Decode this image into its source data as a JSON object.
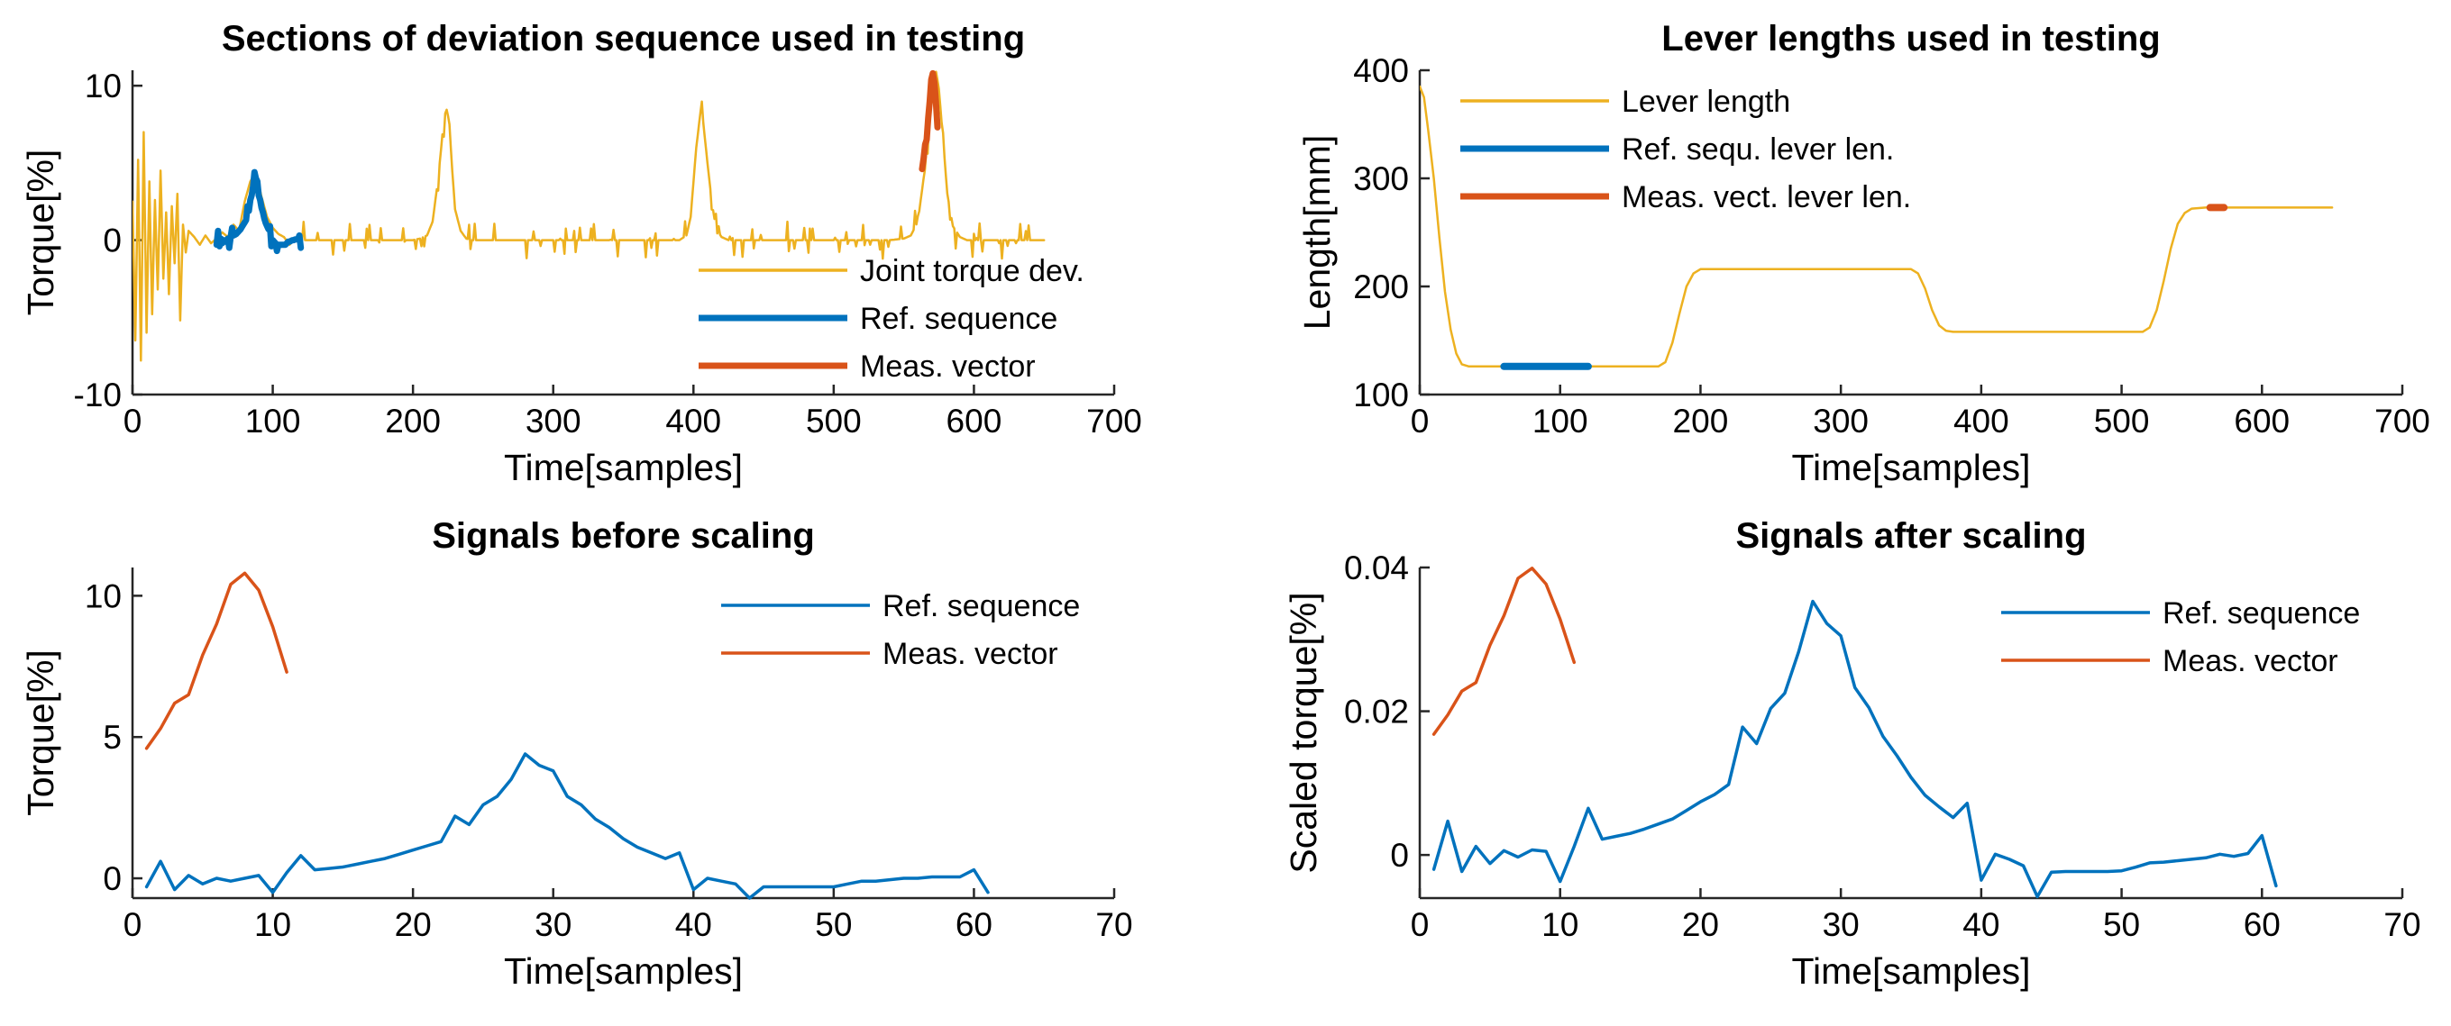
{
  "chart_data": [
    {
      "id": "p1",
      "type": "line",
      "title": "Sections of deviation sequence used in testing",
      "xlabel": "Time[samples]",
      "ylabel": "Torque[%]",
      "xlim": [
        0,
        700
      ],
      "ylim": [
        -10,
        11
      ],
      "xticks": [
        0,
        100,
        200,
        300,
        400,
        500,
        600,
        700
      ],
      "yticks": [
        -10,
        0,
        10
      ],
      "legend": "bottom-right",
      "series": [
        {
          "name": "Joint torque dev.",
          "color": "#EDB120",
          "width": 2.5,
          "kind": "torque_dev",
          "x": [
            0,
            2,
            4,
            6,
            8,
            10,
            12,
            14,
            16,
            18,
            20,
            22,
            24,
            26,
            28,
            30,
            32,
            34,
            36,
            38,
            40,
            44,
            48,
            52,
            56,
            60,
            64,
            68,
            72,
            76,
            80,
            84,
            88,
            92,
            96,
            100,
            104,
            108,
            112,
            116,
            120,
            130,
            140,
            150,
            160,
            170,
            180,
            190,
            200,
            205,
            210,
            214,
            218,
            222,
            224,
            226,
            228,
            230,
            234,
            238,
            242,
            250,
            260,
            270,
            280,
            290,
            300,
            310,
            320,
            330,
            340,
            350,
            360,
            370,
            380,
            390,
            395,
            398,
            402,
            405,
            407,
            410,
            413,
            416,
            420,
            425,
            430,
            440,
            450,
            460,
            470,
            480,
            490,
            500,
            510,
            520,
            530,
            540,
            550,
            555,
            560,
            565,
            568,
            571,
            573,
            575,
            578,
            581,
            585,
            590,
            595,
            600,
            610,
            620,
            630,
            640,
            650
          ],
          "y": [
            2.5,
            -6.5,
            5.2,
            -7.8,
            7.0,
            -6.0,
            3.8,
            -4.8,
            2.6,
            -3.2,
            4.5,
            -2.5,
            1.8,
            -3.5,
            2.2,
            -1.5,
            3.0,
            -5.2,
            1.0,
            -0.8,
            0.6,
            0.2,
            -0.3,
            0.3,
            -0.2,
            0.1,
            0.5,
            0.2,
            1.0,
            0.6,
            2.5,
            3.8,
            4.4,
            2.8,
            1.5,
            0.8,
            0.4,
            0.2,
            -0.3,
            0.1,
            0.0,
            0.0,
            0.0,
            0.0,
            0.0,
            0.0,
            0.0,
            0.0,
            0.0,
            0.1,
            0.3,
            1.2,
            4.0,
            7.8,
            8.6,
            7.5,
            4.5,
            2.0,
            0.6,
            0.1,
            0.0,
            0.0,
            0.0,
            0.0,
            0.0,
            0.0,
            0.0,
            0.0,
            0.0,
            0.0,
            0.0,
            0.0,
            0.0,
            0.0,
            0.0,
            0.0,
            0.3,
            1.5,
            6.0,
            8.3,
            7.6,
            5.0,
            2.5,
            0.8,
            0.2,
            0.0,
            0.0,
            0.0,
            0.0,
            0.0,
            0.0,
            0.0,
            0.0,
            0.0,
            0.0,
            0.0,
            0.0,
            0.0,
            0.1,
            0.3,
            1.2,
            4.6,
            7.8,
            10.2,
            10.9,
            9.8,
            6.5,
            3.0,
            0.9,
            0.2,
            0.0,
            0.0,
            0.0,
            0.0,
            0.0,
            0.0,
            0.0
          ]
        },
        {
          "name": "Ref. sequence",
          "color": "#0072BD",
          "width": 7,
          "kind": "ref",
          "x_offset": 60,
          "x_step": 1,
          "y": [
            -0.3,
            0.6,
            -0.4,
            0.1,
            -0.2,
            0.0,
            -0.1,
            0.0,
            0.1,
            -0.5,
            0.2,
            0.8,
            0.3,
            0.35,
            0.4,
            0.5,
            0.6,
            0.7,
            0.85,
            1.0,
            1.15,
            1.3,
            2.2,
            1.9,
            2.6,
            2.9,
            3.5,
            4.4,
            4.0,
            3.8,
            2.9,
            2.6,
            2.1,
            1.8,
            1.4,
            1.1,
            0.9,
            0.7,
            0.9,
            -0.4,
            0.0,
            -0.1,
            -0.2,
            -0.7,
            -0.3,
            -0.3,
            -0.3,
            -0.3,
            -0.3,
            -0.3,
            -0.2,
            -0.1,
            -0.1,
            -0.05,
            0.0,
            0.0,
            0.05,
            0.05,
            0.05,
            0.3,
            -0.5
          ]
        },
        {
          "name": "Meas. vector",
          "color": "#D95319",
          "width": 7,
          "kind": "meas",
          "x_offset": 563,
          "x_step": 1,
          "y": [
            4.6,
            5.3,
            6.2,
            6.5,
            7.9,
            9.0,
            10.4,
            10.8,
            10.2,
            8.9,
            7.3
          ]
        }
      ]
    },
    {
      "id": "p2",
      "type": "line",
      "title": "Lever lengths used in testing",
      "xlabel": "Time[samples]",
      "ylabel": "Length[mm]",
      "xlim": [
        0,
        700
      ],
      "ylim": [
        100,
        400
      ],
      "xticks": [
        0,
        100,
        200,
        300,
        400,
        500,
        600,
        700
      ],
      "yticks": [
        100,
        200,
        300,
        400
      ],
      "legend": "top-left",
      "series": [
        {
          "name": "Lever length",
          "color": "#EDB120",
          "width": 2.5,
          "x": [
            0,
            3,
            6,
            10,
            14,
            18,
            22,
            26,
            30,
            35,
            40,
            60,
            100,
            150,
            170,
            175,
            180,
            185,
            190,
            195,
            200,
            210,
            250,
            300,
            350,
            355,
            360,
            365,
            370,
            375,
            380,
            400,
            450,
            500,
            515,
            520,
            525,
            530,
            535,
            540,
            545,
            550,
            560,
            600,
            650
          ],
          "y": [
            385,
            375,
            345,
            300,
            245,
            195,
            160,
            138,
            128,
            126,
            126,
            126,
            126,
            126,
            126,
            130,
            148,
            175,
            200,
            212,
            216,
            216,
            216,
            216,
            216,
            212,
            198,
            178,
            164,
            159,
            158,
            158,
            158,
            158,
            158,
            162,
            178,
            205,
            235,
            258,
            268,
            272,
            273,
            273,
            273
          ]
        },
        {
          "name": "Ref. sequ. lever len.",
          "color": "#0072BD",
          "width": 8,
          "x": [
            60,
            120
          ],
          "y": [
            126,
            126
          ]
        },
        {
          "name": "Meas. vect. lever len.",
          "color": "#D95319",
          "width": 8,
          "x": [
            563,
            573
          ],
          "y": [
            273,
            273
          ]
        }
      ]
    },
    {
      "id": "p3",
      "type": "line",
      "title": "Signals before scaling",
      "xlabel": "Time[samples]",
      "ylabel": "Torque[%]",
      "xlim": [
        0,
        70
      ],
      "ylim": [
        -0.7,
        11
      ],
      "xticks": [
        0,
        10,
        20,
        30,
        40,
        50,
        60,
        70
      ],
      "yticks": [
        0,
        5,
        10
      ],
      "legend": "top-right",
      "series": [
        {
          "name": "Ref. sequence",
          "color": "#0072BD",
          "width": 3.5,
          "x": [
            1,
            2,
            3,
            4,
            5,
            6,
            7,
            8,
            9,
            10,
            11,
            12,
            13,
            14,
            15,
            16,
            17,
            18,
            19,
            20,
            21,
            22,
            23,
            24,
            25,
            26,
            27,
            28,
            29,
            30,
            31,
            32,
            33,
            34,
            35,
            36,
            37,
            38,
            39,
            40,
            41,
            42,
            43,
            44,
            45,
            46,
            47,
            48,
            49,
            50,
            51,
            52,
            53,
            54,
            55,
            56,
            57,
            58,
            59,
            60,
            61
          ],
          "y": [
            -0.3,
            0.6,
            -0.4,
            0.1,
            -0.2,
            0.0,
            -0.1,
            0.0,
            0.1,
            -0.5,
            0.2,
            0.8,
            0.3,
            0.35,
            0.4,
            0.5,
            0.6,
            0.7,
            0.85,
            1.0,
            1.15,
            1.3,
            2.2,
            1.9,
            2.6,
            2.9,
            3.5,
            4.4,
            4.0,
            3.8,
            2.9,
            2.6,
            2.1,
            1.8,
            1.4,
            1.1,
            0.9,
            0.7,
            0.9,
            -0.4,
            0.0,
            -0.1,
            -0.2,
            -0.7,
            -0.3,
            -0.3,
            -0.3,
            -0.3,
            -0.3,
            -0.3,
            -0.2,
            -0.1,
            -0.1,
            -0.05,
            0.0,
            0.0,
            0.05,
            0.05,
            0.05,
            0.3,
            -0.5
          ]
        },
        {
          "name": "Meas. vector",
          "color": "#D95319",
          "width": 3.5,
          "x": [
            1,
            2,
            3,
            4,
            5,
            6,
            7,
            8,
            9,
            10,
            11
          ],
          "y": [
            4.6,
            5.3,
            6.2,
            6.5,
            7.9,
            9.0,
            10.4,
            10.8,
            10.2,
            8.9,
            7.3
          ]
        }
      ]
    },
    {
      "id": "p4",
      "type": "line",
      "title": "Signals after scaling",
      "xlabel": "Time[samples]",
      "ylabel": "Scaled torque[%]",
      "xlim": [
        0,
        70
      ],
      "ylim": [
        -0.006,
        0.04
      ],
      "xticks": [
        0,
        10,
        20,
        30,
        40,
        50,
        60,
        70
      ],
      "yticks": [
        0,
        0.02,
        0.04
      ],
      "ytick_labels": [
        "0",
        "0.02",
        "0.04"
      ],
      "legend": "top-right",
      "series": [
        {
          "name": "Ref. sequence",
          "color": "#0072BD",
          "width": 3.5,
          "x": [
            1,
            2,
            3,
            4,
            5,
            6,
            7,
            8,
            9,
            10,
            11,
            12,
            13,
            14,
            15,
            16,
            17,
            18,
            19,
            20,
            21,
            22,
            23,
            24,
            25,
            26,
            27,
            28,
            29,
            30,
            31,
            32,
            33,
            34,
            35,
            36,
            37,
            38,
            39,
            40,
            41,
            42,
            43,
            44,
            45,
            46,
            47,
            48,
            49,
            50,
            51,
            52,
            53,
            54,
            55,
            56,
            57,
            58,
            59,
            60,
            61
          ],
          "y": [
            -0.002,
            0.0047,
            -0.0023,
            0.0012,
            -0.0012,
            0.0006,
            -0.0003,
            0.0007,
            0.0005,
            -0.0037,
            0.0012,
            0.0065,
            0.0022,
            0.0026,
            0.003,
            0.0036,
            0.0043,
            0.005,
            0.0062,
            0.0074,
            0.0084,
            0.0098,
            0.0178,
            0.0155,
            0.0204,
            0.0225,
            0.0283,
            0.0353,
            0.0322,
            0.0305,
            0.0233,
            0.0205,
            0.0165,
            0.0138,
            0.0108,
            0.0083,
            0.0067,
            0.0052,
            0.0072,
            -0.0035,
            0.0001,
            -0.0006,
            -0.0015,
            -0.0058,
            -0.0024,
            -0.0023,
            -0.0023,
            -0.0023,
            -0.0023,
            -0.0022,
            -0.0017,
            -0.0011,
            -0.001,
            -0.0008,
            -0.0006,
            -0.0004,
            0.0001,
            -0.0002,
            0.0002,
            0.0027,
            -0.0043
          ]
        },
        {
          "name": "Meas. vector",
          "color": "#D95319",
          "width": 3.5,
          "x": [
            1,
            2,
            3,
            4,
            5,
            6,
            7,
            8,
            9,
            10,
            11
          ],
          "y": [
            0.0168,
            0.0195,
            0.0228,
            0.024,
            0.0292,
            0.0333,
            0.0385,
            0.0399,
            0.0377,
            0.0328,
            0.0268
          ]
        }
      ]
    }
  ]
}
